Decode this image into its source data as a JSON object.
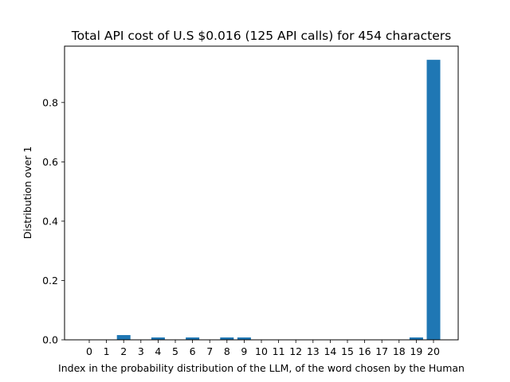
{
  "chart_data": {
    "type": "bar",
    "title": "Total API cost of U.S $0.016 (125 API calls) for 454 characters",
    "xlabel": "Index in the probability distribution of the LLM, of the word chosen by the Human",
    "ylabel": "Distribution over 1",
    "categories": [
      "0",
      "1",
      "2",
      "3",
      "4",
      "5",
      "6",
      "7",
      "8",
      "9",
      "10",
      "11",
      "12",
      "13",
      "14",
      "15",
      "16",
      "17",
      "18",
      "19",
      "20"
    ],
    "values": [
      0,
      0,
      0.016,
      0,
      0.008,
      0,
      0.008,
      0,
      0.008,
      0.008,
      0,
      0,
      0,
      0,
      0,
      0,
      0,
      0,
      0,
      0.008,
      0.944
    ],
    "yticks": [
      "0.0",
      "0.2",
      "0.4",
      "0.6",
      "0.8"
    ],
    "ylim": [
      0,
      0.99
    ],
    "bar_color": "#1f77b4",
    "grid": false,
    "legend": "none"
  }
}
